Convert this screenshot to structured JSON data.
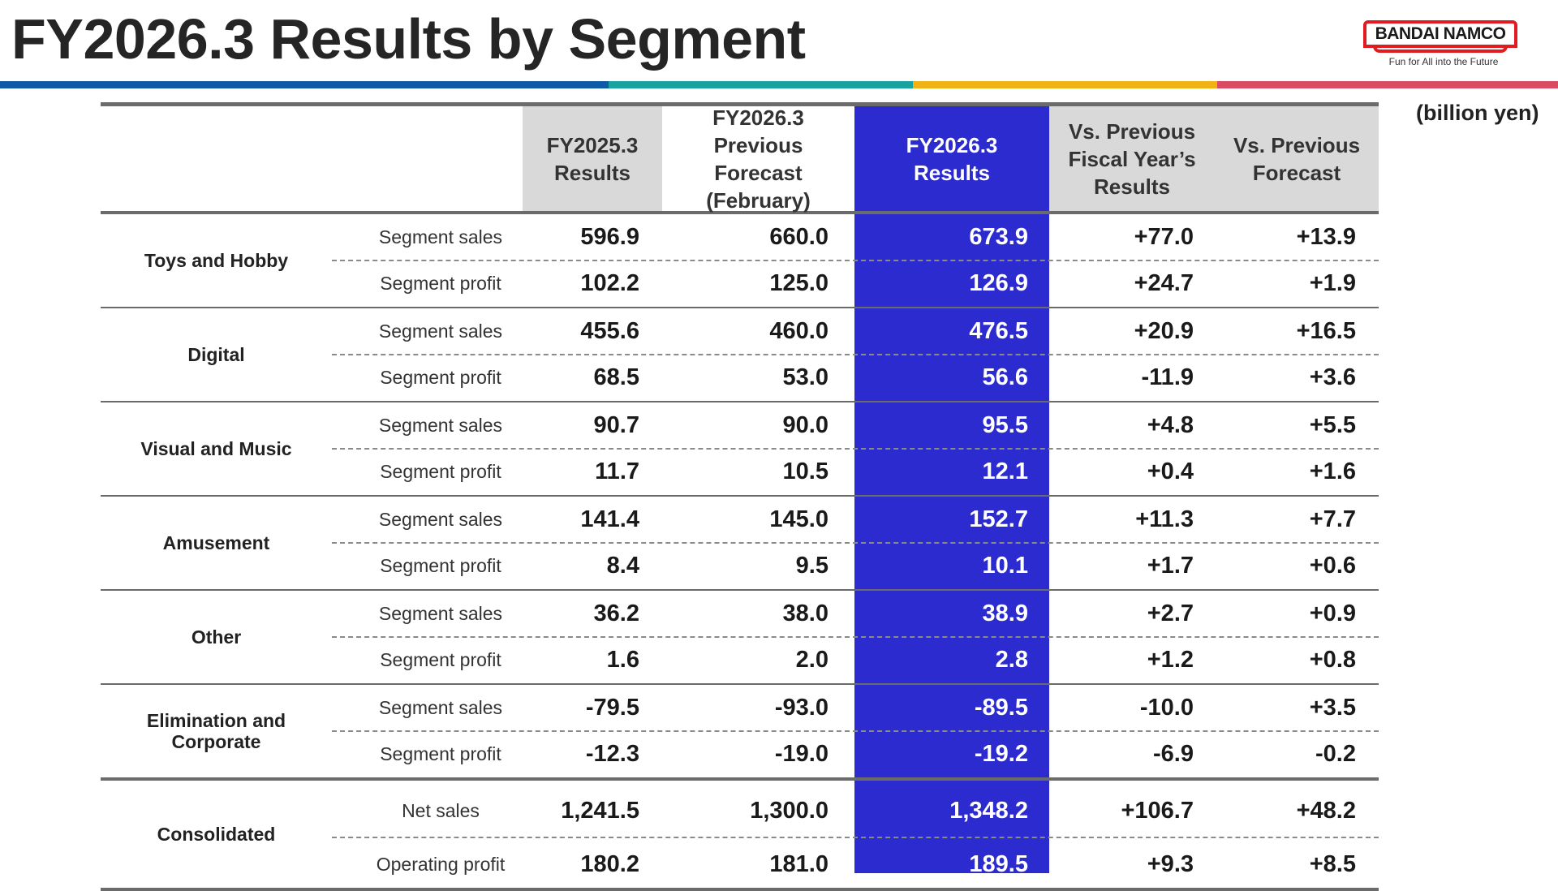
{
  "title": "FY2026.3 Results by Segment",
  "logo": {
    "brand": "BANDAI NAMCO",
    "tagline": "Fun for All into the Future"
  },
  "unit": "(billion yen)",
  "colors": {
    "highlight_column": "#2b2bd0",
    "header_grey": "#d9d9d9",
    "stripe": [
      "#0e5aa7",
      "#19a3a0",
      "#f0b214",
      "#d94a63"
    ]
  },
  "columns": [
    "FY2025.3\nResults",
    "FY2026.3\nPrevious\nForecast\n(February)",
    "FY2026.3\nResults",
    "Vs. Previous\nFiscal Year’s\nResults",
    "Vs. Previous\nForecast"
  ],
  "groups": [
    {
      "name": "Toys and Hobby",
      "rows": [
        {
          "label": "Segment sales",
          "values": [
            "596.9",
            "660.0",
            "673.9",
            "+77.0",
            "+13.9"
          ]
        },
        {
          "label": "Segment profit",
          "values": [
            "102.2",
            "125.0",
            "126.9",
            "+24.7",
            "+1.9"
          ]
        }
      ]
    },
    {
      "name": "Digital",
      "rows": [
        {
          "label": "Segment sales",
          "values": [
            "455.6",
            "460.0",
            "476.5",
            "+20.9",
            "+16.5"
          ]
        },
        {
          "label": "Segment profit",
          "values": [
            "68.5",
            "53.0",
            "56.6",
            "-11.9",
            "+3.6"
          ]
        }
      ]
    },
    {
      "name": "Visual and Music",
      "rows": [
        {
          "label": "Segment sales",
          "values": [
            "90.7",
            "90.0",
            "95.5",
            "+4.8",
            "+5.5"
          ]
        },
        {
          "label": "Segment profit",
          "values": [
            "11.7",
            "10.5",
            "12.1",
            "+0.4",
            "+1.6"
          ]
        }
      ]
    },
    {
      "name": "Amusement",
      "rows": [
        {
          "label": "Segment sales",
          "values": [
            "141.4",
            "145.0",
            "152.7",
            "+11.3",
            "+7.7"
          ]
        },
        {
          "label": "Segment profit",
          "values": [
            "8.4",
            "9.5",
            "10.1",
            "+1.7",
            "+0.6"
          ]
        }
      ]
    },
    {
      "name": "Other",
      "rows": [
        {
          "label": "Segment sales",
          "values": [
            "36.2",
            "38.0",
            "38.9",
            "+2.7",
            "+0.9"
          ]
        },
        {
          "label": "Segment profit",
          "values": [
            "1.6",
            "2.0",
            "2.8",
            "+1.2",
            "+0.8"
          ]
        }
      ]
    },
    {
      "name": "Elimination and\nCorporate",
      "rows": [
        {
          "label": "Segment sales",
          "values": [
            "-79.5",
            "-93.0",
            "-89.5",
            "-10.0",
            "+3.5"
          ]
        },
        {
          "label": "Segment profit",
          "values": [
            "-12.3",
            "-19.0",
            "-19.2",
            "-6.9",
            "-0.2"
          ]
        }
      ]
    },
    {
      "name": "Consolidated",
      "rows": [
        {
          "label": "Net sales",
          "values": [
            "1,241.5",
            "1,300.0",
            "1,348.2",
            "+106.7",
            "+48.2"
          ]
        },
        {
          "label": "Operating profit",
          "values": [
            "180.2",
            "181.0",
            "189.5",
            "+9.3",
            "+8.5"
          ]
        }
      ]
    }
  ]
}
